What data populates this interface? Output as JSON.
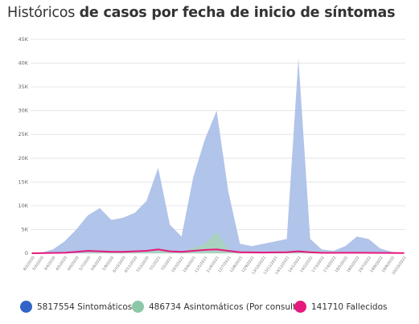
{
  "title": {
    "prefix": "Históricos",
    "bold": "de casos por fecha de inicio de síntomas"
  },
  "legend": [
    {
      "count": "5817554",
      "label": "Sintomáticos",
      "color": "#3264c8"
    },
    {
      "count": "486734",
      "label": "Asintomáticos (Por consulta)",
      "color": "#8cc8a8"
    },
    {
      "count": "141710",
      "label": "Fallecidos",
      "color": "#e6197d"
    }
  ],
  "chart_data": {
    "type": "area",
    "y_ticks": [
      "0",
      "5K",
      "10K",
      "15K",
      "20K",
      "25K",
      "30K",
      "35K",
      "40K",
      "45K"
    ],
    "ylim": [
      0,
      45000
    ],
    "grid": true,
    "legend_position": "bottom",
    "x_tick_labels": [
      "8/2/2020",
      "3/3/2020",
      "3/4/2020",
      "4/5/2020",
      "4/6/2020",
      "5/7/2020",
      "5/8/2020",
      "5/9/2020",
      "6/10/2020",
      "6/11/2020",
      "7/12/2020",
      "7/1/2021",
      "7/2/2021",
      "10/3/2021",
      "10/4/2021",
      "11/5/2021",
      "11/6/2021",
      "12/7/2021",
      "12/8/2021",
      "12/9/2021",
      "13/10/2021",
      "13/11/2021",
      "14/12/2021",
      "14/1/2022",
      "14/2/2022",
      "17/3/2022",
      "17/4/2022",
      "18/5/2022",
      "18/6/2022",
      "19/7/2022",
      "19/8/2022",
      "19/9/2022",
      "20/10/2022"
    ],
    "series": [
      {
        "name": "Sintomáticos",
        "color": "#a9bee8",
        "points": [
          [
            "8/2/2020",
            0
          ],
          [
            "3/3/2020",
            100
          ],
          [
            "3/4/2020",
            800
          ],
          [
            "4/5/2020",
            2500
          ],
          [
            "4/6/2020",
            5000
          ],
          [
            "5/7/2020",
            8000
          ],
          [
            "5/8/2020",
            9500
          ],
          [
            "5/9/2020",
            7000
          ],
          [
            "6/10/2020",
            7500
          ],
          [
            "6/11/2020",
            8500
          ],
          [
            "7/12/2020",
            11000
          ],
          [
            "7/1/2021",
            18000
          ],
          [
            "7/2/2021",
            6000
          ],
          [
            "10/3/2021",
            3500
          ],
          [
            "10/4/2021",
            16000
          ],
          [
            "11/5/2021",
            24000
          ],
          [
            "11/6/2021",
            30000
          ],
          [
            "12/7/2021",
            13000
          ],
          [
            "12/8/2021",
            2000
          ],
          [
            "12/9/2021",
            1500
          ],
          [
            "13/10/2021",
            2000
          ],
          [
            "13/11/2021",
            2500
          ],
          [
            "14/12/2021",
            3000
          ],
          [
            "14/1/2022",
            41000
          ],
          [
            "14/2/2022",
            3000
          ],
          [
            "17/3/2022",
            800
          ],
          [
            "17/4/2022",
            500
          ],
          [
            "18/5/2022",
            1500
          ],
          [
            "18/6/2022",
            3500
          ],
          [
            "19/7/2022",
            3000
          ],
          [
            "19/8/2022",
            1000
          ],
          [
            "19/9/2022",
            300
          ],
          [
            "20/10/2022",
            0
          ]
        ]
      },
      {
        "name": "Asintomáticos (Por consulta)",
        "color": "#a8d5bb",
        "points": [
          [
            "8/2/2020",
            0
          ],
          [
            "4/6/2020",
            0
          ],
          [
            "5/7/2020",
            200
          ],
          [
            "6/11/2020",
            300
          ],
          [
            "7/1/2021",
            1000
          ],
          [
            "10/3/2021",
            200
          ],
          [
            "11/5/2021",
            2000
          ],
          [
            "11/6/2021",
            4500
          ],
          [
            "12/7/2021",
            800
          ],
          [
            "12/8/2021",
            100
          ],
          [
            "14/1/2022",
            500
          ],
          [
            "20/10/2022",
            0
          ]
        ]
      },
      {
        "name": "Fallecidos",
        "color": "#e6197d",
        "points": [
          [
            "8/2/2020",
            0
          ],
          [
            "4/5/2020",
            100
          ],
          [
            "4/6/2020",
            300
          ],
          [
            "5/7/2020",
            500
          ],
          [
            "5/8/2020",
            400
          ],
          [
            "5/9/2020",
            300
          ],
          [
            "6/10/2020",
            300
          ],
          [
            "6/11/2020",
            400
          ],
          [
            "7/12/2020",
            500
          ],
          [
            "7/1/2021",
            800
          ],
          [
            "7/2/2021",
            400
          ],
          [
            "10/3/2021",
            300
          ],
          [
            "10/4/2021",
            500
          ],
          [
            "11/5/2021",
            700
          ],
          [
            "11/6/2021",
            800
          ],
          [
            "12/7/2021",
            500
          ],
          [
            "12/8/2021",
            200
          ],
          [
            "13/10/2021",
            150
          ],
          [
            "14/12/2021",
            200
          ],
          [
            "14/1/2022",
            400
          ],
          [
            "14/2/2022",
            200
          ],
          [
            "17/3/2022",
            80
          ],
          [
            "18/6/2022",
            100
          ],
          [
            "20/10/2022",
            30
          ]
        ]
      }
    ]
  }
}
